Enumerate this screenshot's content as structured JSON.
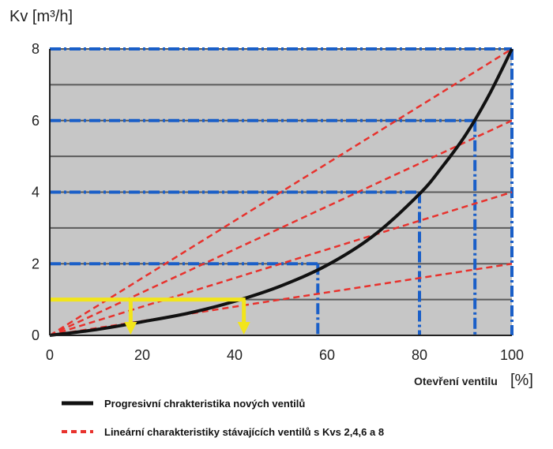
{
  "chart_data": {
    "type": "line",
    "ylabel": "Kv [m³/h]",
    "xlabel": "Otevření ventilu",
    "xunit": "[%]",
    "xlim": [
      0,
      100
    ],
    "ylim": [
      0,
      8
    ],
    "xticks": [
      0,
      20,
      40,
      60,
      80,
      100
    ],
    "yticks": [
      0,
      2,
      4,
      6,
      8
    ],
    "grid": true,
    "legend_position": "bottom",
    "colors": {
      "background": "#c6c6c6",
      "grid": "#5a5a5a",
      "progressive": "#111111",
      "linear": "#e8322d",
      "guide": "#1a5fc8",
      "highlight": "#f2e51a"
    },
    "series": [
      {
        "name": "Progresivní chrakteristika nových ventilů",
        "style": "solid",
        "x": [
          0,
          10,
          20,
          30,
          40,
          50,
          60,
          70,
          80,
          85,
          90,
          95,
          100
        ],
        "y": [
          0,
          0.16,
          0.38,
          0.62,
          0.95,
          1.38,
          1.96,
          2.78,
          3.95,
          4.72,
          5.6,
          6.7,
          8.0
        ]
      },
      {
        "name": "Lineární charakteristiky stávajících ventilů s Kvs 2,4,6 a 8",
        "style": "dashed",
        "lines": [
          {
            "kvs": 2,
            "x": [
              0,
              100
            ],
            "y": [
              0,
              2
            ]
          },
          {
            "kvs": 4,
            "x": [
              0,
              100
            ],
            "y": [
              0,
              4
            ]
          },
          {
            "kvs": 6,
            "x": [
              0,
              100
            ],
            "y": [
              0,
              6
            ]
          },
          {
            "kvs": 8,
            "x": [
              0,
              100
            ],
            "y": [
              0,
              8
            ]
          }
        ]
      }
    ],
    "guides": [
      {
        "kv": 2,
        "opening": 58
      },
      {
        "kv": 4,
        "opening": 80
      },
      {
        "kv": 6,
        "opening": 92
      },
      {
        "kv": 8,
        "opening": 100
      }
    ],
    "highlight": {
      "kv": 1,
      "openings": [
        17.5,
        42
      ]
    }
  },
  "legend": [
    {
      "label": "Progresivní chrakteristika nových ventilů",
      "style": "solid"
    },
    {
      "label": "Lineární charakteristiky stávajících ventilů s Kvs 2,4,6 a 8",
      "style": "dashed"
    }
  ]
}
